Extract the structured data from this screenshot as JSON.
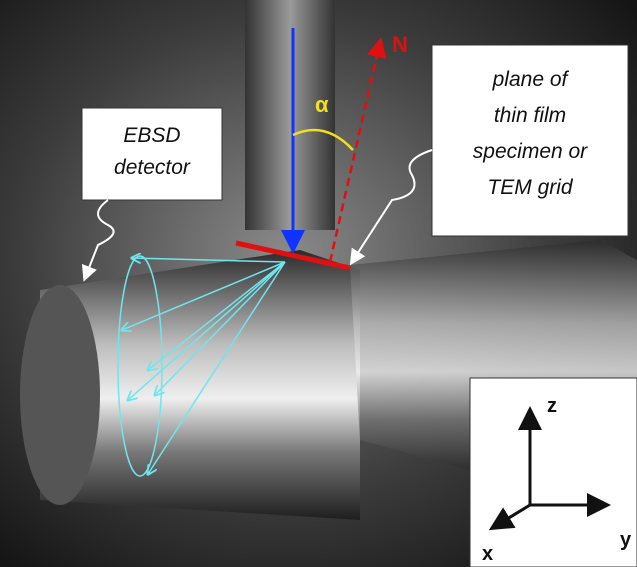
{
  "labels": {
    "ebsd": [
      "EBSD",
      "detector"
    ],
    "plane": [
      "plane of",
      "thin film",
      "specimen or",
      "TEM grid"
    ]
  },
  "vectors": {
    "normal": "N",
    "angle": "α"
  },
  "axes": {
    "z": "z",
    "y": "y",
    "x": "x"
  }
}
